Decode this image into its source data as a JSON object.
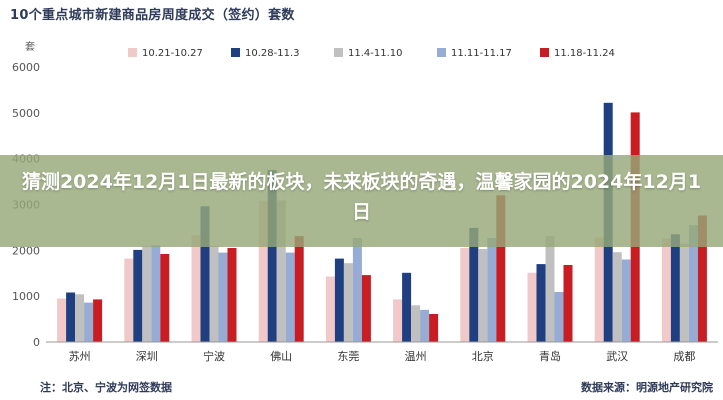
{
  "chart_data": {
    "type": "bar",
    "title": "10个重点城市新建商品房周度成交（签约）套数",
    "ylabel": "套",
    "ylim": [
      0,
      6000
    ],
    "yticks": [
      0,
      1000,
      2000,
      3000,
      4000,
      5000,
      6000
    ],
    "grid": false,
    "legend": "top",
    "categories": [
      "苏州",
      "深圳",
      "宁波",
      "佛山",
      "东莞",
      "温州",
      "北京",
      "青岛",
      "武汉",
      "成都"
    ],
    "series": [
      {
        "name": "10.21-10.27",
        "color": "#f2c9c9",
        "values": [
          950,
          1820,
          2330,
          3080,
          1430,
          930,
          2050,
          1510,
          2280,
          2260
        ]
      },
      {
        "name": "10.28-11.3",
        "color": "#1f3f80",
        "values": [
          1080,
          2010,
          2960,
          3750,
          1820,
          1510,
          2490,
          1700,
          5220,
          2350
        ]
      },
      {
        "name": "11.4-11.10",
        "color": "#c0c0c0",
        "values": [
          1040,
          2090,
          2100,
          3090,
          1720,
          800,
          2030,
          2310,
          1960,
          2140
        ]
      },
      {
        "name": "11.11-11.17",
        "color": "#97acd4",
        "values": [
          860,
          2110,
          1950,
          1950,
          2270,
          700,
          2270,
          1090,
          1800,
          2550
        ]
      },
      {
        "name": "11.18-11.24",
        "color": "#c81e23",
        "values": [
          930,
          1920,
          2050,
          2310,
          1460,
          610,
          3200,
          1680,
          5010,
          2760
        ]
      }
    ]
  },
  "overlay": {
    "text": "猜测2024年12月1日最新的板块，未来板块的奇遇，温馨家园的2024年12月1日"
  },
  "footnote": "注：北京、宁波为网签数据",
  "source": "数据来源：明源地产研究院"
}
